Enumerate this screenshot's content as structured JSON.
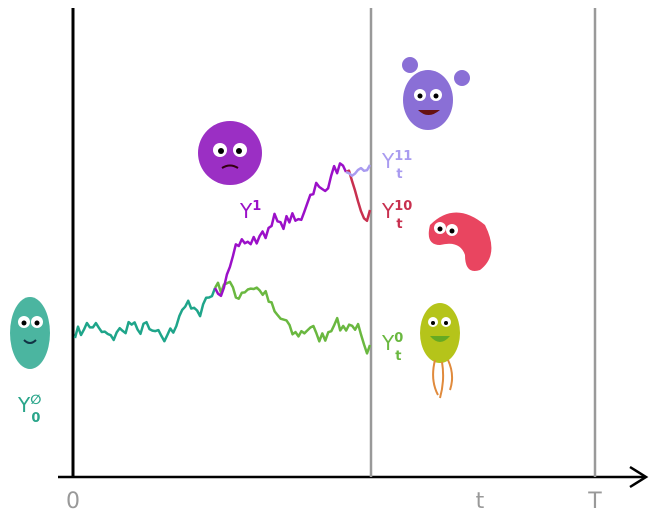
{
  "axis": {
    "origin": "0",
    "t": "t",
    "T": "T"
  },
  "labels": [
    {
      "base": "Y",
      "sup": "∅",
      "sub": "0"
    },
    {
      "base": "Y",
      "sup": "1"
    },
    {
      "base": "Y",
      "sup": "11",
      "sub": "t"
    },
    {
      "base": "Y",
      "sup": "10",
      "sub": "t"
    },
    {
      "base": "Y",
      "sup": "0",
      "sub": "t"
    }
  ]
}
